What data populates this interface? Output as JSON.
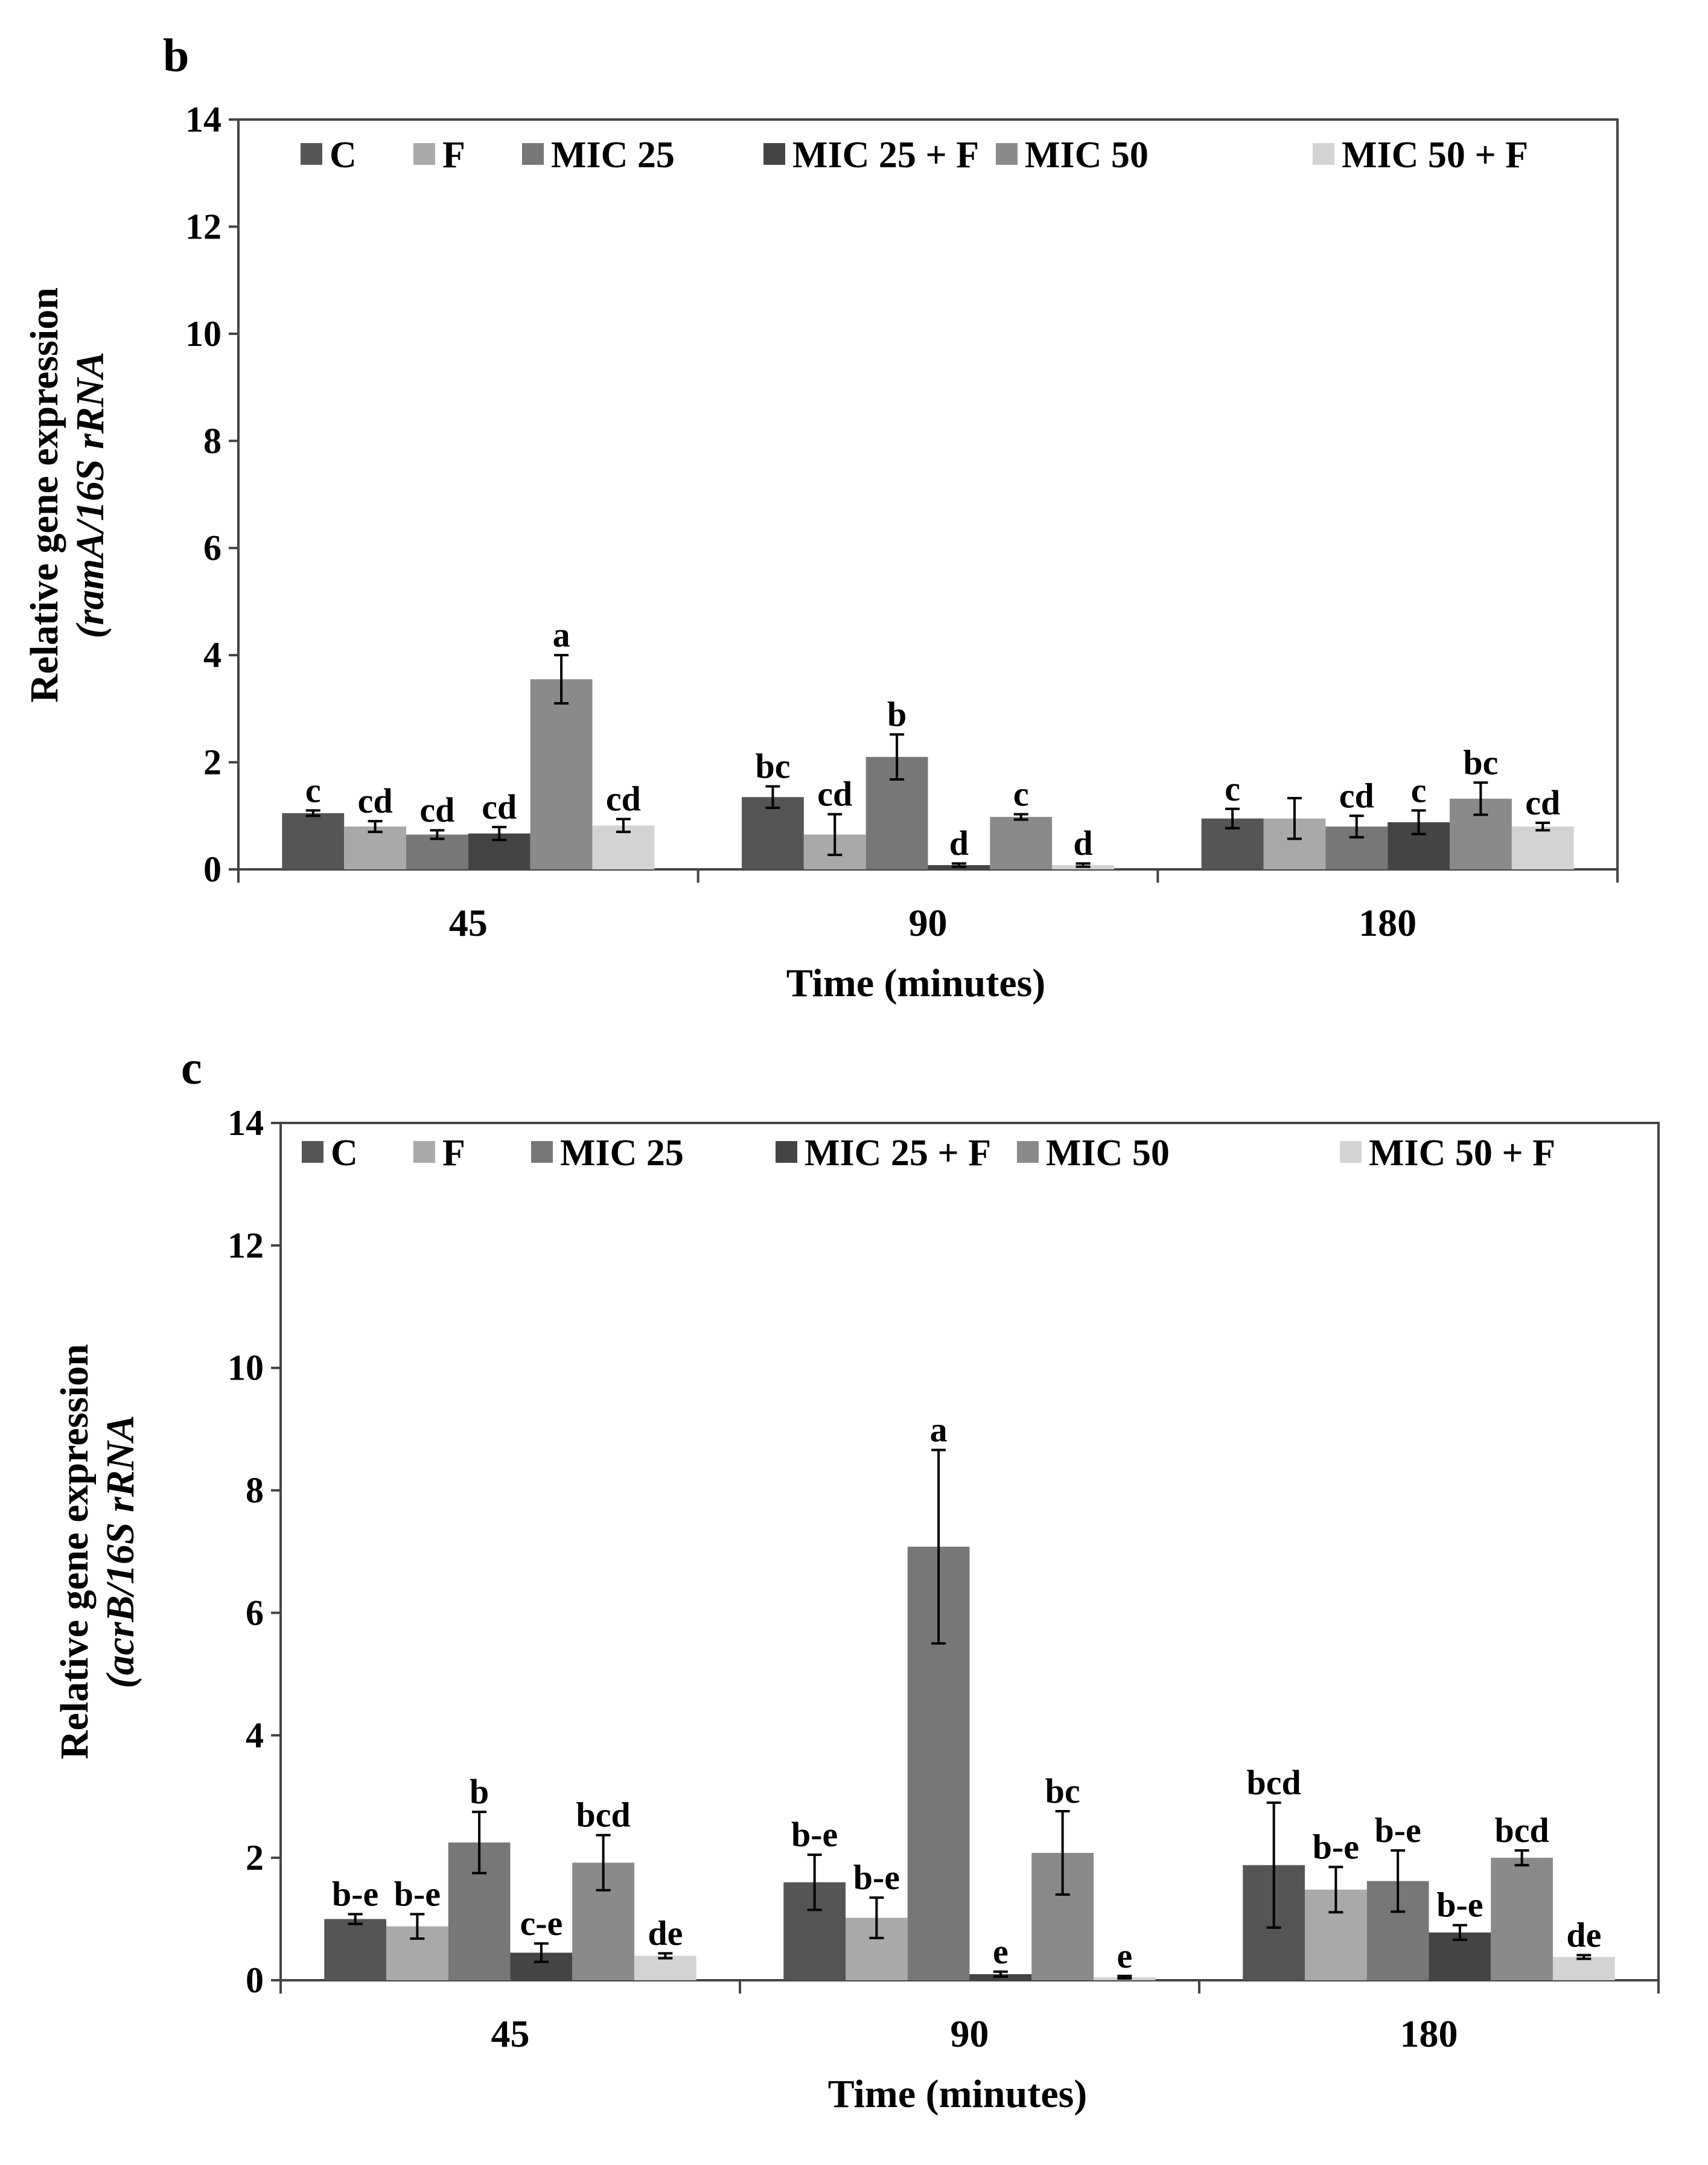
{
  "chart_data": [
    {
      "panel": "b",
      "type": "bar",
      "xlabel": "Time (minutes)",
      "ylabel": "Relative gene expression",
      "ylabel_sub": "(ramA/16S rRNA",
      "ylim": [
        0,
        14
      ],
      "yticks": [
        0,
        2,
        4,
        6,
        8,
        10,
        12,
        14
      ],
      "categories": [
        "45",
        "90",
        "180"
      ],
      "series": [
        {
          "name": "C",
          "color": "#555555",
          "values": [
            1.05,
            1.35,
            0.95
          ],
          "errors": [
            0.05,
            0.2,
            0.18
          ],
          "letters": [
            "c",
            "bc",
            "c"
          ]
        },
        {
          "name": "F",
          "color": "#a9a9a9",
          "values": [
            0.8,
            0.65,
            0.95
          ],
          "errors": [
            0.1,
            0.38,
            0.38
          ],
          "letters": [
            "cd",
            "cd",
            ""
          ]
        },
        {
          "name": "MIC 25",
          "color": "#777777",
          "values": [
            0.65,
            2.1,
            0.8
          ],
          "errors": [
            0.08,
            0.42,
            0.2
          ],
          "letters": [
            "cd",
            "b",
            "cd"
          ]
        },
        {
          "name": "MIC 25 + F",
          "color": "#444444",
          "values": [
            0.67,
            0.08,
            0.88
          ],
          "errors": [
            0.12,
            0.03,
            0.22
          ],
          "letters": [
            "cd",
            "d",
            "c"
          ]
        },
        {
          "name": "MIC 50",
          "color": "#8a8a8a",
          "values": [
            3.55,
            0.98,
            1.32
          ],
          "errors": [
            0.45,
            0.05,
            0.3
          ],
          "letters": [
            "a",
            "c",
            "bc"
          ]
        },
        {
          "name": "MIC 50 + F",
          "color": "#d3d3d3",
          "values": [
            0.82,
            0.08,
            0.8
          ],
          "errors": [
            0.12,
            0.03,
            0.07
          ],
          "letters": [
            "cd",
            "d",
            "cd"
          ]
        }
      ]
    },
    {
      "panel": "c",
      "type": "bar",
      "xlabel": "Time (minutes)",
      "ylabel": "Relative gene expression",
      "ylabel_sub": "(acrB/16S rRNA",
      "ylim": [
        0,
        14
      ],
      "yticks": [
        0,
        2,
        4,
        6,
        8,
        10,
        12,
        14
      ],
      "categories": [
        "45",
        "90",
        "180"
      ],
      "series": [
        {
          "name": "C",
          "color": "#555555",
          "values": [
            1.0,
            1.6,
            1.88
          ],
          "errors": [
            0.08,
            0.45,
            1.02
          ],
          "letters": [
            "b-e",
            "b-e",
            "bcd"
          ]
        },
        {
          "name": "F",
          "color": "#a9a9a9",
          "values": [
            0.88,
            1.02,
            1.48
          ],
          "errors": [
            0.2,
            0.33,
            0.37
          ],
          "letters": [
            "b-e",
            "b-e",
            "b-e"
          ]
        },
        {
          "name": "MIC 25",
          "color": "#777777",
          "values": [
            2.25,
            7.08,
            1.62
          ],
          "errors": [
            0.5,
            1.58,
            0.5
          ],
          "letters": [
            "b",
            "a",
            "b-e"
          ]
        },
        {
          "name": "MIC 25 + F",
          "color": "#444444",
          "values": [
            0.45,
            0.1,
            0.78
          ],
          "errors": [
            0.15,
            0.04,
            0.12
          ],
          "letters": [
            "c-e",
            "e",
            "b-e"
          ]
        },
        {
          "name": "MIC 50",
          "color": "#8a8a8a",
          "values": [
            1.92,
            2.08,
            2.0
          ],
          "errors": [
            0.45,
            0.68,
            0.12
          ],
          "letters": [
            "bcd",
            "bc",
            "bcd"
          ]
        },
        {
          "name": "MIC 50 + F",
          "color": "#d3d3d3",
          "values": [
            0.4,
            0.05,
            0.38
          ],
          "errors": [
            0.04,
            0.02,
            0.03
          ],
          "letters": [
            "de",
            "e",
            "de"
          ]
        }
      ]
    }
  ]
}
